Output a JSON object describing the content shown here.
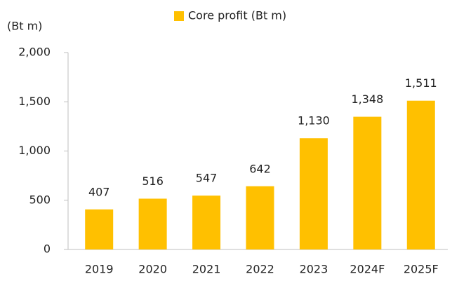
{
  "chart_data": {
    "type": "bar",
    "y_axis_label": "(Bt m)",
    "categories": [
      "2019",
      "2020",
      "2021",
      "2022",
      "2023",
      "2024F",
      "2025F"
    ],
    "series": [
      {
        "name": "Core profit (Bt m)",
        "color": "#ffc000",
        "values": [
          407,
          516,
          547,
          642,
          1130,
          1348,
          1511
        ],
        "value_labels": [
          "407",
          "516",
          "547",
          "642",
          "1,130",
          "1,348",
          "1,511"
        ]
      }
    ],
    "ylim": [
      0,
      2000
    ],
    "yticks": [
      0,
      500,
      {
        "value": 1000,
        "label": "1,000"
      },
      {
        "value": 1500,
        "label": "1,500"
      },
      {
        "value": 2000,
        "label": "2,000"
      }
    ],
    "legend": "top"
  }
}
